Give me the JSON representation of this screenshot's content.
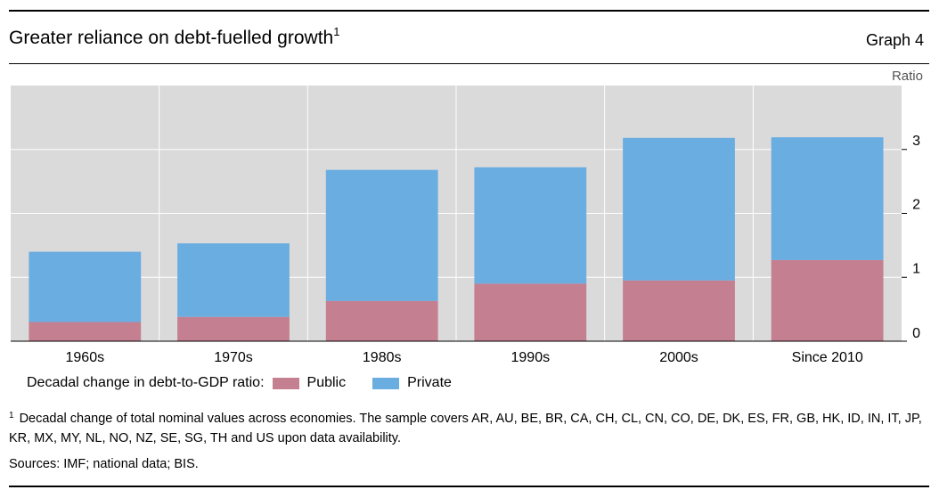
{
  "header": {
    "title": "Greater reliance on debt-fuelled growth",
    "title_footnote_mark": "1",
    "graph_label": "Graph 4"
  },
  "chart_data": {
    "type": "bar",
    "stacked": true,
    "categories": [
      "1960s",
      "1970s",
      "1980s",
      "1990s",
      "2000s",
      "Since 2010"
    ],
    "series": [
      {
        "name": "Public",
        "color": "#c48090",
        "values": [
          0.3,
          0.38,
          0.63,
          0.9,
          0.95,
          1.27
        ]
      },
      {
        "name": "Private",
        "color": "#6aade0",
        "values": [
          1.1,
          1.15,
          2.05,
          1.82,
          2.23,
          1.92
        ]
      }
    ],
    "ylabel": "Ratio",
    "ylim": [
      0,
      4
    ],
    "yticks": [
      "0",
      "1",
      "2",
      "3"
    ],
    "grid": true,
    "legend_title": "Decadal change in debt-to-GDP ratio:",
    "legend_position": "bottom-left"
  },
  "notes": {
    "footnote_mark": "1",
    "footnote": "Decadal change of total nominal values across economies. The sample covers AR, AU, BE, BR, CA, CH, CL, CN, CO, DE, DK, ES, FR, GB, HK, ID, IN, IT, JP, KR, MX, MY, NL, NO, NZ, SE, SG, TH and US upon data availability.",
    "sources": "Sources: IMF; national data; BIS."
  }
}
